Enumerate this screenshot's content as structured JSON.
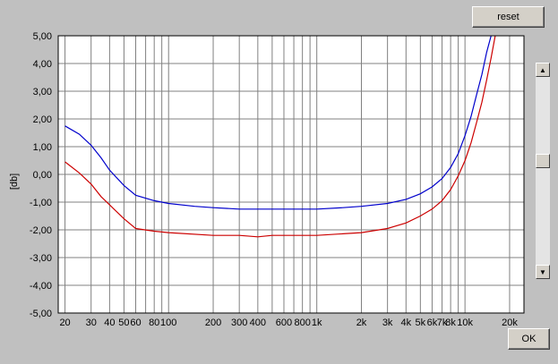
{
  "buttons": {
    "reset": "reset",
    "ok": "OK"
  },
  "scrollbar": {
    "up_glyph": "▲",
    "down_glyph": "▼",
    "thumb_position": 0.45
  },
  "chart_data": {
    "type": "line",
    "title": "",
    "xlabel": "",
    "ylabel": "[db]",
    "x_scale": "log",
    "xlim": [
      18,
      25000
    ],
    "ylim": [
      -5,
      5
    ],
    "grid": true,
    "y_ticks": [
      "5,00",
      "4,00",
      "3,00",
      "2,00",
      "1,00",
      "0,00",
      "-1,00",
      "-2,00",
      "-3,00",
      "-4,00",
      "-5,00"
    ],
    "y_tick_values": [
      5,
      4,
      3,
      2,
      1,
      0,
      -1,
      -2,
      -3,
      -4,
      -5
    ],
    "x_gridlines": [
      20,
      30,
      40,
      50,
      60,
      70,
      80,
      90,
      100,
      200,
      300,
      400,
      500,
      600,
      700,
      800,
      900,
      1000,
      2000,
      3000,
      4000,
      5000,
      6000,
      7000,
      8000,
      9000,
      10000,
      20000
    ],
    "x_ticks": [
      {
        "v": 20,
        "t": "20"
      },
      {
        "v": 30,
        "t": "30"
      },
      {
        "v": 40,
        "t": "40"
      },
      {
        "v": 50,
        "t": "50"
      },
      {
        "v": 60,
        "t": "60"
      },
      {
        "v": 80,
        "t": "80"
      },
      {
        "v": 100,
        "t": "100"
      },
      {
        "v": 200,
        "t": "200"
      },
      {
        "v": 300,
        "t": "300"
      },
      {
        "v": 400,
        "t": "400"
      },
      {
        "v": 600,
        "t": "600"
      },
      {
        "v": 800,
        "t": "800"
      },
      {
        "v": 1000,
        "t": "1k"
      },
      {
        "v": 2000,
        "t": "2k"
      },
      {
        "v": 3000,
        "t": "3k"
      },
      {
        "v": 4000,
        "t": "4k"
      },
      {
        "v": 5000,
        "t": "5k"
      },
      {
        "v": 6000,
        "t": "6k"
      },
      {
        "v": 7000,
        "t": "7k"
      },
      {
        "v": 8000,
        "t": "8k"
      },
      {
        "v": 10000,
        "t": "10k"
      },
      {
        "v": 20000,
        "t": "20k"
      }
    ],
    "series": [
      {
        "color": "#0000cc",
        "points": [
          [
            20,
            1.75
          ],
          [
            25,
            1.45
          ],
          [
            30,
            1.05
          ],
          [
            35,
            0.6
          ],
          [
            40,
            0.15
          ],
          [
            50,
            -0.4
          ],
          [
            60,
            -0.75
          ],
          [
            80,
            -0.95
          ],
          [
            100,
            -1.05
          ],
          [
            150,
            -1.15
          ],
          [
            200,
            -1.2
          ],
          [
            300,
            -1.25
          ],
          [
            500,
            -1.25
          ],
          [
            1000,
            -1.25
          ],
          [
            1500,
            -1.2
          ],
          [
            2000,
            -1.15
          ],
          [
            3000,
            -1.05
          ],
          [
            4000,
            -0.9
          ],
          [
            5000,
            -0.7
          ],
          [
            6000,
            -0.45
          ],
          [
            7000,
            -0.15
          ],
          [
            8000,
            0.25
          ],
          [
            9000,
            0.75
          ],
          [
            10000,
            1.4
          ],
          [
            11000,
            2.1
          ],
          [
            12000,
            2.9
          ],
          [
            13000,
            3.6
          ],
          [
            14000,
            4.4
          ],
          [
            15000,
            5.0
          ]
        ]
      },
      {
        "color": "#cc0000",
        "points": [
          [
            20,
            0.45
          ],
          [
            25,
            0.05
          ],
          [
            30,
            -0.35
          ],
          [
            35,
            -0.8
          ],
          [
            40,
            -1.1
          ],
          [
            50,
            -1.6
          ],
          [
            60,
            -1.95
          ],
          [
            80,
            -2.05
          ],
          [
            100,
            -2.1
          ],
          [
            200,
            -2.2
          ],
          [
            300,
            -2.2
          ],
          [
            400,
            -2.25
          ],
          [
            500,
            -2.2
          ],
          [
            1000,
            -2.2
          ],
          [
            2000,
            -2.1
          ],
          [
            3000,
            -1.95
          ],
          [
            4000,
            -1.75
          ],
          [
            5000,
            -1.5
          ],
          [
            6000,
            -1.25
          ],
          [
            7000,
            -0.95
          ],
          [
            8000,
            -0.55
          ],
          [
            9000,
            -0.05
          ],
          [
            10000,
            0.5
          ],
          [
            11000,
            1.15
          ],
          [
            12000,
            1.9
          ],
          [
            13000,
            2.6
          ],
          [
            14000,
            3.4
          ],
          [
            15000,
            4.2
          ],
          [
            16000,
            5.0
          ]
        ]
      }
    ]
  }
}
